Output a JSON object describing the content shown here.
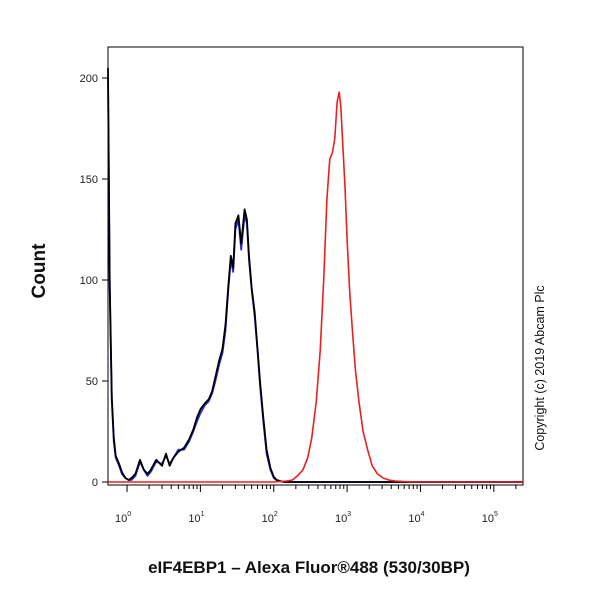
{
  "chart_data": {
    "type": "line",
    "xlabel": "eIF4EBP1 – Alexa Fluor®488 (530/30BP)",
    "ylabel": "Count",
    "x_scale": "log",
    "xlim": [
      0.55,
      250000
    ],
    "ylim": [
      0,
      205
    ],
    "yticks": [
      0,
      50,
      100,
      150,
      200
    ],
    "xticks": [
      {
        "value": 1,
        "base": "10",
        "exp": "0"
      },
      {
        "value": 10,
        "base": "10",
        "exp": "1"
      },
      {
        "value": 100,
        "base": "10",
        "exp": "2"
      },
      {
        "value": 1000,
        "base": "10",
        "exp": "3"
      },
      {
        "value": 10000,
        "base": "10",
        "exp": "4"
      },
      {
        "value": 100000,
        "base": "10",
        "exp": "5"
      }
    ],
    "series": [
      {
        "color": "#2b2bd6",
        "x": [
          0.55,
          0.58,
          0.62,
          0.66,
          0.7,
          0.78,
          0.85,
          0.95,
          1.05,
          1.15,
          1.3,
          1.5,
          1.7,
          1.9,
          2.1,
          2.5,
          3.0,
          3.4,
          3.8,
          4.3,
          5.0,
          6.0,
          7.0,
          8.0,
          9.0,
          10.0,
          11.5,
          13.0,
          14.5,
          16.0,
          18.0,
          20.0,
          22.0,
          24.0,
          26.0,
          28.0,
          30.0,
          33.0,
          36.0,
          40.0,
          43.0,
          46.0,
          50.0,
          55.0,
          60.0,
          65.0,
          72.0,
          80.0,
          90.0,
          100.0,
          110.0,
          125.0,
          140.0,
          170.0,
          250.0,
          500.0,
          1000.0,
          5000.0,
          50000.0,
          250000.0
        ],
        "y": [
          200,
          95,
          40,
          20,
          12,
          8,
          4,
          2,
          1,
          1,
          3,
          10,
          6,
          3,
          5,
          10,
          9,
          13,
          9,
          12,
          16,
          16,
          20,
          25,
          30,
          34,
          38,
          40,
          44,
          50,
          58,
          64,
          75,
          95,
          110,
          104,
          125,
          130,
          115,
          132,
          128,
          110,
          95,
          82,
          65,
          48,
          30,
          14,
          6,
          2,
          0.8,
          0.3,
          0,
          0,
          0,
          0,
          0,
          0,
          0,
          0
        ]
      },
      {
        "color": "#000000",
        "x": [
          0.55,
          0.58,
          0.62,
          0.66,
          0.7,
          0.78,
          0.85,
          0.95,
          1.05,
          1.15,
          1.3,
          1.5,
          1.7,
          1.9,
          2.1,
          2.5,
          3.0,
          3.4,
          3.8,
          4.3,
          5.0,
          6.0,
          7.0,
          8.0,
          9.0,
          10.0,
          11.5,
          13.0,
          14.5,
          16.0,
          18.0,
          20.0,
          22.0,
          24.0,
          26.0,
          28.0,
          30.0,
          33.0,
          36.0,
          40.0,
          43.0,
          46.0,
          50.0,
          55.0,
          60.0,
          65.0,
          72.0,
          80.0,
          90.0,
          100.0,
          110.0,
          125.0,
          140.0,
          170.0,
          250.0,
          500.0,
          1000.0,
          5000.0,
          50000.0,
          250000.0
        ],
        "y": [
          205,
          100,
          42,
          22,
          13,
          9,
          5,
          2,
          1,
          2,
          4,
          11,
          6,
          4,
          6,
          11,
          8,
          14,
          8,
          12,
          15,
          17,
          21,
          26,
          32,
          36,
          39,
          41,
          45,
          52,
          60,
          66,
          78,
          97,
          112,
          106,
          128,
          132,
          118,
          135,
          130,
          112,
          96,
          84,
          66,
          50,
          32,
          16,
          7,
          2.5,
          1,
          0.4,
          0,
          0,
          0,
          0,
          0,
          0,
          0,
          0
        ]
      },
      {
        "color": "#e8201f",
        "x": [
          0.55,
          10,
          100,
          150,
          180,
          210,
          250,
          290,
          330,
          380,
          430,
          480,
          530,
          580,
          630,
          680,
          730,
          780,
          820,
          880,
          940,
          1000,
          1080,
          1180,
          1300,
          1450,
          1650,
          1900,
          2200,
          2600,
          3100,
          3700,
          4500,
          6000,
          10000,
          50000,
          250000
        ],
        "y": [
          0,
          0,
          0,
          0.5,
          1,
          3,
          6,
          12,
          22,
          40,
          65,
          100,
          140,
          160,
          163,
          170,
          188,
          193,
          186,
          165,
          145,
          120,
          95,
          75,
          55,
          40,
          25,
          16,
          8,
          4,
          2,
          1,
          0.5,
          0.2,
          0,
          0,
          0
        ]
      }
    ]
  },
  "copyright_text": "Copyright (c) 2019 Abcam Plc"
}
